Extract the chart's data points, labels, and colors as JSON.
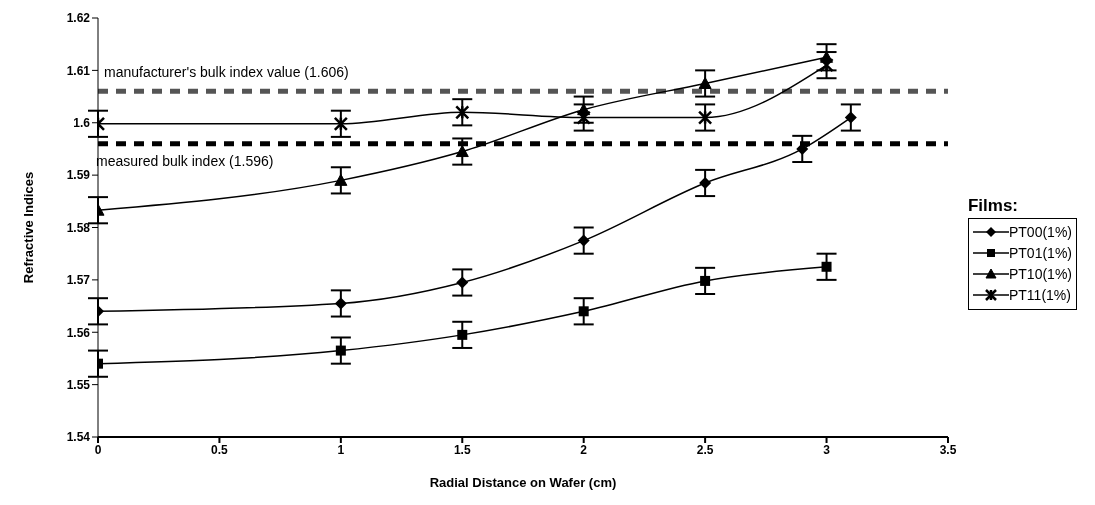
{
  "chart_data": {
    "type": "line",
    "xlabel": "Radial Distance on Wafer (cm)",
    "ylabel": "Refractive Indices",
    "legend_title": "Films:",
    "legend": "right",
    "grid": false,
    "line_style": "solid",
    "xlim": [
      0,
      3.5
    ],
    "xticks": [
      0,
      0.5,
      1,
      1.5,
      2,
      2.5,
      3,
      3.5
    ],
    "ylim": [
      1.54,
      1.62
    ],
    "yticks": [
      1.54,
      1.55,
      1.56,
      1.57,
      1.58,
      1.59,
      1.6,
      1.61,
      1.62
    ],
    "series": [
      {
        "name": "PT00(1%)",
        "color": "#000000",
        "marker": "diamond",
        "x": [
          0,
          1,
          1.5,
          2,
          2.5,
          2.9,
          3.1
        ],
        "values": [
          1.564,
          1.5655,
          1.5695,
          1.5775,
          1.5885,
          1.595,
          1.601
        ],
        "errors": [
          0.0025,
          0.0025,
          0.0025,
          0.0025,
          0.0025,
          0.0025,
          0.0025
        ]
      },
      {
        "name": "PT01(1%)",
        "color": "#000000",
        "marker": "square",
        "x": [
          0,
          1,
          1.5,
          2,
          2.5,
          3
        ],
        "values": [
          1.554,
          1.5565,
          1.5595,
          1.564,
          1.5698,
          1.5725
        ],
        "errors": [
          0.0025,
          0.0025,
          0.0025,
          0.0025,
          0.0025,
          0.0025
        ]
      },
      {
        "name": "PT10(1%)",
        "color": "#000000",
        "marker": "triangle",
        "x": [
          0,
          1,
          1.5,
          2,
          2.5,
          3
        ],
        "values": [
          1.5833,
          1.589,
          1.5945,
          1.6025,
          1.6075,
          1.6125
        ],
        "errors": [
          0.0025,
          0.0025,
          0.0025,
          0.0025,
          0.0025,
          0.0025
        ]
      },
      {
        "name": "PT11(1%)",
        "color": "#000000",
        "marker": "cross",
        "x": [
          0,
          1,
          1.5,
          2,
          2.5,
          3
        ],
        "values": [
          1.5998,
          1.5998,
          1.602,
          1.601,
          1.601,
          1.611
        ],
        "errors": [
          0.0025,
          0.0025,
          0.0025,
          0.0025,
          0.0025,
          0.0025
        ]
      }
    ],
    "ref_lines": [
      {
        "axis": "y",
        "value": 1.606,
        "label": "manufacturer's bulk index value (1.606)",
        "color": "#555555",
        "line_style": "dashed"
      },
      {
        "axis": "y",
        "value": 1.596,
        "label": "measured bulk index (1.596)",
        "color": "#000000",
        "line_style": "dashed"
      }
    ]
  }
}
